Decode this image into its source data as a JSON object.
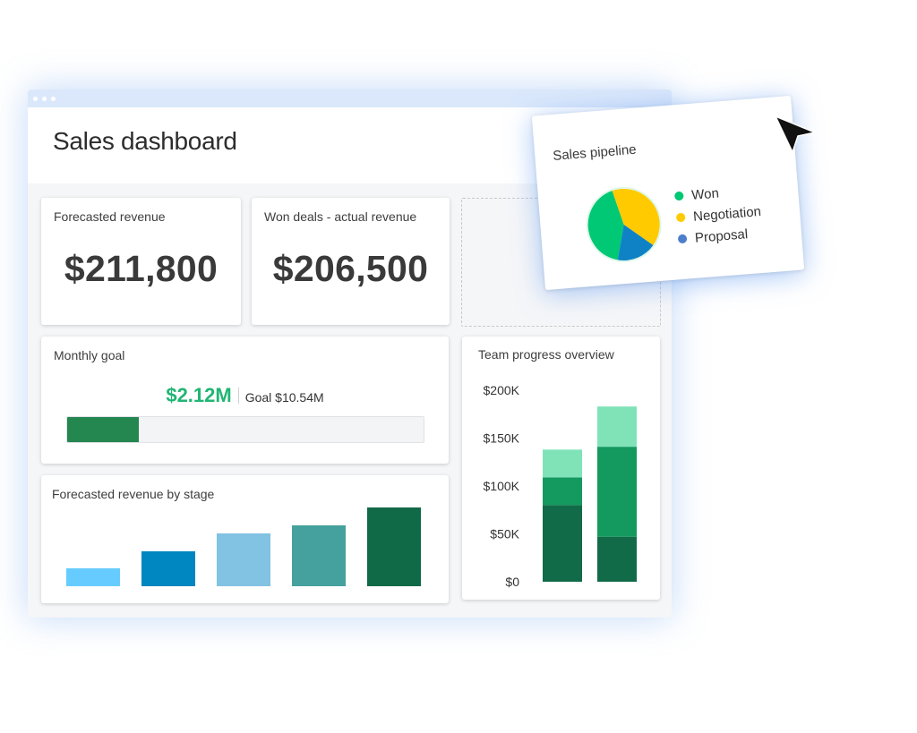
{
  "window": {
    "title": "Sales dashboard"
  },
  "forecasted_revenue": {
    "title": "Forecasted revenue",
    "value": "$211,800"
  },
  "won_deals": {
    "title": "Won deals - actual revenue",
    "value": "$206,500"
  },
  "monthly_goal": {
    "title": "Monthly goal",
    "value": "$2.12M",
    "goal": "Goal $10.54M",
    "progress_fraction": 0.2,
    "fill_color": "#258750"
  },
  "stage_chart": {
    "title": "Forecasted revenue by stage",
    "bars": [
      {
        "value": 20,
        "color": "#66ccff"
      },
      {
        "value": 40,
        "color": "#0086c0"
      },
      {
        "value": 60,
        "color": "#82c2e2"
      },
      {
        "value": 70,
        "color": "#45a19d"
      },
      {
        "value": 90,
        "color": "#116a47"
      }
    ],
    "max": 90
  },
  "chart_data": [
    {
      "type": "bar",
      "title": "Team progress overview",
      "stacked": true,
      "ylim": [
        0,
        200000
      ],
      "yticks": [
        "$200K",
        "$150K",
        "$100K",
        "$50K",
        "$0"
      ],
      "ytick_values": [
        200000,
        150000,
        100000,
        50000,
        0
      ],
      "categories": [
        "",
        ""
      ],
      "series": [
        {
          "values": [
            80000,
            47000
          ],
          "color": "#126b48"
        },
        {
          "values": [
            29000,
            94000
          ],
          "color": "#14995f"
        },
        {
          "values": [
            29000,
            42000
          ],
          "color": "#80e3b8"
        }
      ],
      "grid": false
    },
    {
      "type": "pie",
      "title": "Sales pipeline",
      "labels": [
        "Won",
        "Negotiation",
        "Proposal"
      ],
      "values": [
        42,
        40,
        18
      ],
      "colors": [
        "#00c875",
        "#ffcb00",
        "#0f82c6"
      ],
      "legend_colors": [
        "#00c875",
        "#ffcb00",
        "#4d7ec9"
      ],
      "legend": "right"
    }
  ]
}
